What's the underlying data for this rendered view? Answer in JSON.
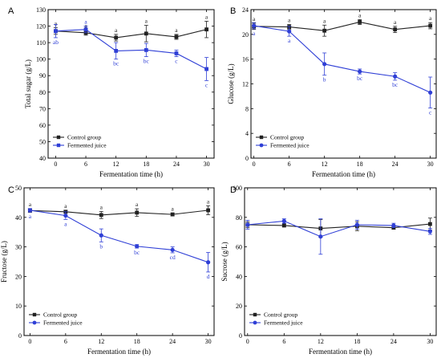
{
  "colors": {
    "control": "#222222",
    "fermented": "#2f3fd6"
  },
  "legend": {
    "control": "Control group",
    "fermented": "Fermented juice"
  },
  "chart_data": [
    {
      "panel": "A",
      "type": "line",
      "xlabel": "Fermentation time (h)",
      "ylabel": "Total sugar (g/L)",
      "x": [
        0,
        6,
        12,
        18,
        24,
        30
      ],
      "xticks": [
        "0",
        "6",
        "12",
        "18",
        "24",
        "30"
      ],
      "xlim": [
        -1.5,
        31.5
      ],
      "ylim": [
        40,
        130
      ],
      "yticks": [
        "40",
        "50",
        "60",
        "70",
        "80",
        "90",
        "100",
        "110",
        "120",
        "130"
      ],
      "legend_position": "bottom-left",
      "series": [
        {
          "name": "Control group",
          "marker": "square",
          "values": [
            117,
            116,
            113,
            115.5,
            113.5,
            118
          ],
          "errors": [
            2,
            1.5,
            2,
            5,
            1.5,
            5
          ],
          "labels": [
            "a",
            "a",
            "a",
            "a",
            "a",
            "a"
          ]
        },
        {
          "name": "Fermented juice",
          "marker": "square",
          "values": [
            117,
            118,
            105,
            105.5,
            103.5,
            94
          ],
          "errors": [
            4,
            2,
            5,
            4,
            2,
            7
          ],
          "labels": [
            "ab",
            "a",
            "bc",
            "bc",
            "c",
            "c"
          ]
        }
      ]
    },
    {
      "panel": "B",
      "type": "line",
      "xlabel": "Fermentation time (h)",
      "ylabel": "Glucose (g/L)",
      "x": [
        0,
        6,
        12,
        18,
        24,
        30
      ],
      "xticks": [
        "0",
        "6",
        "12",
        "18",
        "24",
        "30"
      ],
      "xlim": [
        -0.5,
        31
      ],
      "ylim": [
        0,
        24
      ],
      "yticks": [
        "0",
        "4",
        "8",
        "12",
        "16",
        "20",
        "24"
      ],
      "legend_position": "bottom-left",
      "series": [
        {
          "name": "Control group",
          "marker": "square",
          "values": [
            21.3,
            21.2,
            20.6,
            22,
            20.8,
            21.4
          ],
          "errors": [
            0.5,
            0.4,
            0.9,
            0.4,
            0.5,
            0.5
          ],
          "labels": [
            "a",
            "a",
            "a",
            "a",
            "a",
            "a"
          ]
        },
        {
          "name": "Fermented juice",
          "marker": "circle",
          "values": [
            21.4,
            20.5,
            15.2,
            14,
            13.2,
            10.6
          ],
          "errors": [
            0.5,
            0.8,
            1.8,
            0.4,
            0.6,
            2.5
          ],
          "labels": [
            "a",
            "a",
            "b",
            "bc",
            "bc",
            "c"
          ]
        }
      ]
    },
    {
      "panel": "C",
      "type": "line",
      "xlabel": "Fermentation time (h)",
      "ylabel": "Fructose (g/L)",
      "x": [
        0,
        6,
        12,
        18,
        24,
        30
      ],
      "xticks": [
        "0",
        "6",
        "12",
        "18",
        "24",
        "30"
      ],
      "xlim": [
        -1,
        31
      ],
      "ylim": [
        0,
        50
      ],
      "yticks": [
        "0",
        "10",
        "20",
        "30",
        "40",
        "50"
      ],
      "legend_position": "bottom-left",
      "series": [
        {
          "name": "Control group",
          "marker": "square",
          "values": [
            42.3,
            41.9,
            40.8,
            41.6,
            41,
            42.4
          ],
          "errors": [
            0.6,
            0.5,
            1.2,
            1.3,
            0.5,
            1.5
          ],
          "labels": [
            "a",
            "a",
            "a",
            "a",
            "a",
            "a"
          ]
        },
        {
          "name": "Fermented juice",
          "marker": "circle",
          "values": [
            42.4,
            40.6,
            33.9,
            30.2,
            29,
            24.8
          ],
          "errors": [
            0.6,
            1.3,
            2.2,
            0.6,
            1,
            3.3
          ],
          "labels": [
            "a",
            "a",
            "b",
            "bc",
            "cd",
            "d"
          ]
        }
      ]
    },
    {
      "panel": "D",
      "type": "line",
      "xlabel": "Fermentation time (h)",
      "ylabel": "Sucrose (g/L)",
      "x": [
        0,
        6,
        12,
        18,
        24,
        30
      ],
      "xticks": [
        "0",
        "6",
        "12",
        "18",
        "24",
        "30"
      ],
      "xlim": [
        -0.5,
        31
      ],
      "ylim": [
        0,
        100
      ],
      "yticks": [
        "0",
        "20",
        "40",
        "60",
        "80",
        "100"
      ],
      "legend_position": "bottom-left",
      "series": [
        {
          "name": "Control group",
          "marker": "square",
          "values": [
            75,
            74.5,
            72.5,
            74,
            73,
            75.5
          ],
          "errors": [
            2,
            1,
            6,
            3,
            1,
            4
          ],
          "labels": []
        },
        {
          "name": "Fermented juice",
          "marker": "circle",
          "values": [
            75,
            77.5,
            67,
            75,
            74.5,
            70.5
          ],
          "errors": [
            3,
            1.5,
            12,
            3,
            1.5,
            2
          ],
          "labels": []
        }
      ]
    }
  ]
}
